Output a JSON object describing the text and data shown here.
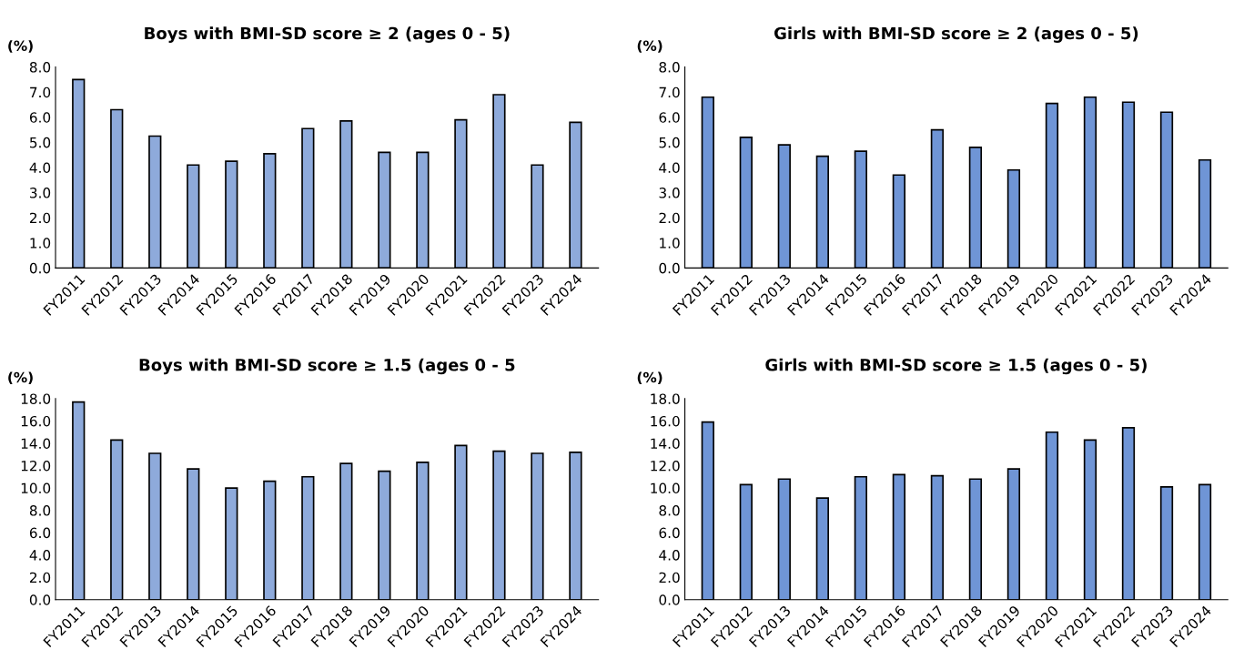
{
  "chart_data": [
    {
      "type": "bar",
      "title": "Boys with BMI-SD score ≥ 2 (ages 0 - 5)",
      "ylabel": "(%)",
      "categories": [
        "FY2011",
        "FY2012",
        "FY2013",
        "FY2014",
        "FY2015",
        "FY2016",
        "FY2017",
        "FY2018",
        "FY2019",
        "FY2020",
        "FY2021",
        "FY2022",
        "FY2023",
        "FY2024"
      ],
      "values": [
        7.5,
        6.3,
        5.25,
        4.1,
        4.25,
        4.55,
        5.55,
        5.85,
        4.6,
        4.6,
        5.9,
        6.9,
        4.1,
        5.8
      ],
      "color": "#8eaadb",
      "ylim": [
        0,
        8
      ],
      "yticks": [
        {
          "value": 0,
          "label": "0.0"
        },
        {
          "value": 1,
          "label": "1.0"
        },
        {
          "value": 2,
          "label": "2.0"
        },
        {
          "value": 3,
          "label": "3.0"
        },
        {
          "value": 4,
          "label": "4.0"
        },
        {
          "value": 5,
          "label": "5.0"
        },
        {
          "value": 6,
          "label": "6.0"
        },
        {
          "value": 7,
          "label": "7.0"
        },
        {
          "value": 8,
          "label": "8.0"
        }
      ]
    },
    {
      "type": "bar",
      "title": "Girls with BMI-SD score ≥ 2 (ages 0 - 5)",
      "ylabel": "(%)",
      "categories": [
        "FY2011",
        "FY2012",
        "FY2013",
        "FY2014",
        "FY2015",
        "FY2016",
        "FY2017",
        "FY2018",
        "FY2019",
        "FY2020",
        "FY2021",
        "FY2022",
        "FY2023",
        "FY2024"
      ],
      "values": [
        6.8,
        5.2,
        4.9,
        4.45,
        4.65,
        3.7,
        5.5,
        4.8,
        3.9,
        6.55,
        6.8,
        6.6,
        6.2,
        4.3
      ],
      "color": "#6f95d6",
      "ylim": [
        0,
        8
      ],
      "yticks": [
        {
          "value": 0,
          "label": "0.0"
        },
        {
          "value": 1,
          "label": "1.0"
        },
        {
          "value": 2,
          "label": "2.0"
        },
        {
          "value": 3,
          "label": "3.0"
        },
        {
          "value": 4,
          "label": "4.0"
        },
        {
          "value": 5,
          "label": "5.0"
        },
        {
          "value": 6,
          "label": "6.0"
        },
        {
          "value": 7,
          "label": "7.0"
        },
        {
          "value": 8,
          "label": "8.0"
        }
      ]
    },
    {
      "type": "bar",
      "title": "Boys with BMI-SD score ≥ 1.5 (ages 0 - 5",
      "ylabel": "(%)",
      "categories": [
        "FY2011",
        "FY2012",
        "FY2013",
        "FY2014",
        "FY2015",
        "FY2016",
        "FY2017",
        "FY2018",
        "FY2019",
        "FY2020",
        "FY2021",
        "FY2022",
        "FY2023",
        "FY2024"
      ],
      "values": [
        17.7,
        14.3,
        13.1,
        11.7,
        10.0,
        10.6,
        11.0,
        12.2,
        11.5,
        12.3,
        13.8,
        13.3,
        13.1,
        13.2
      ],
      "color": "#8eaadb",
      "ylim": [
        0,
        18
      ],
      "yticks": [
        {
          "value": 0,
          "label": "0.0"
        },
        {
          "value": 2,
          "label": "2.0"
        },
        {
          "value": 4,
          "label": "4.0"
        },
        {
          "value": 6,
          "label": "6.0"
        },
        {
          "value": 8,
          "label": "8.0"
        },
        {
          "value": 10,
          "label": "10.0"
        },
        {
          "value": 12,
          "label": "12.0"
        },
        {
          "value": 14,
          "label": "14.0"
        },
        {
          "value": 16,
          "label": "16.0"
        },
        {
          "value": 18,
          "label": "18.0"
        }
      ]
    },
    {
      "type": "bar",
      "title": "Girls with BMI-SD score ≥ 1.5 (ages 0 - 5)",
      "ylabel": "(%)",
      "categories": [
        "FY2011",
        "FY2012",
        "FY2013",
        "FY2014",
        "FY2015",
        "FY2016",
        "FY2017",
        "FY2018",
        "FY2019",
        "FY2020",
        "FY2021",
        "FY2022",
        "FY2023",
        "FY2024"
      ],
      "values": [
        15.9,
        10.3,
        10.8,
        9.1,
        11.0,
        11.2,
        11.1,
        10.8,
        11.7,
        15.0,
        14.3,
        15.4,
        10.1,
        10.3
      ],
      "color": "#6f95d6",
      "ylim": [
        0,
        18
      ],
      "yticks": [
        {
          "value": 0,
          "label": "0.0"
        },
        {
          "value": 2,
          "label": "2.0"
        },
        {
          "value": 4,
          "label": "4.0"
        },
        {
          "value": 6,
          "label": "6.0"
        },
        {
          "value": 8,
          "label": "8.0"
        },
        {
          "value": 10,
          "label": "10.0"
        },
        {
          "value": 12,
          "label": "12.0"
        },
        {
          "value": 14,
          "label": "14.0"
        },
        {
          "value": 16,
          "label": "16.0"
        },
        {
          "value": 18,
          "label": "18.0"
        }
      ]
    }
  ]
}
